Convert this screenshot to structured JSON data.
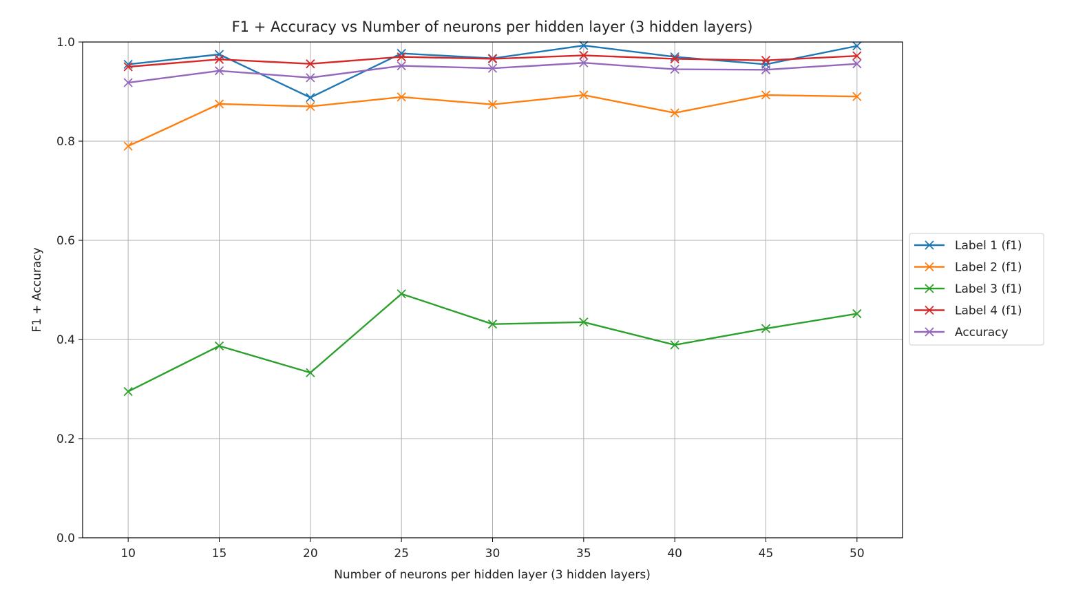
{
  "chart_data": {
    "type": "line",
    "title": "F1 + Accuracy vs Number of neurons per hidden layer (3 hidden layers)",
    "xlabel": "Number of neurons per hidden layer (3 hidden layers)",
    "ylabel": "F1 + Accuracy",
    "x": [
      10,
      15,
      20,
      25,
      30,
      35,
      40,
      45,
      50
    ],
    "xlim": [
      7.5,
      52.5
    ],
    "ylim": [
      0.0,
      1.0
    ],
    "xticks": [
      "10",
      "15",
      "20",
      "25",
      "30",
      "35",
      "40",
      "45",
      "50"
    ],
    "yticks": [
      "0.0",
      "0.2",
      "0.4",
      "0.6",
      "0.8",
      "1.0"
    ],
    "grid": true,
    "legend_position": "right-outside",
    "marker": "x",
    "series": [
      {
        "name": "Label 1 (f1)",
        "color": "#1f77b4",
        "values": [
          0.955,
          0.975,
          0.888,
          0.977,
          0.967,
          0.993,
          0.97,
          0.955,
          0.992
        ]
      },
      {
        "name": "Label 2 (f1)",
        "color": "#ff7f0e",
        "values": [
          0.79,
          0.875,
          0.87,
          0.889,
          0.874,
          0.893,
          0.857,
          0.893,
          0.89
        ]
      },
      {
        "name": "Label 3 (f1)",
        "color": "#2ca02c",
        "values": [
          0.295,
          0.387,
          0.333,
          0.492,
          0.431,
          0.435,
          0.389,
          0.422,
          0.452
        ]
      },
      {
        "name": "Label 4 (f1)",
        "color": "#d62728",
        "values": [
          0.95,
          0.965,
          0.956,
          0.97,
          0.966,
          0.973,
          0.966,
          0.963,
          0.972
        ]
      },
      {
        "name": "Accuracy",
        "color": "#9467bd",
        "values": [
          0.918,
          0.942,
          0.928,
          0.952,
          0.947,
          0.958,
          0.945,
          0.944,
          0.956
        ]
      }
    ]
  }
}
